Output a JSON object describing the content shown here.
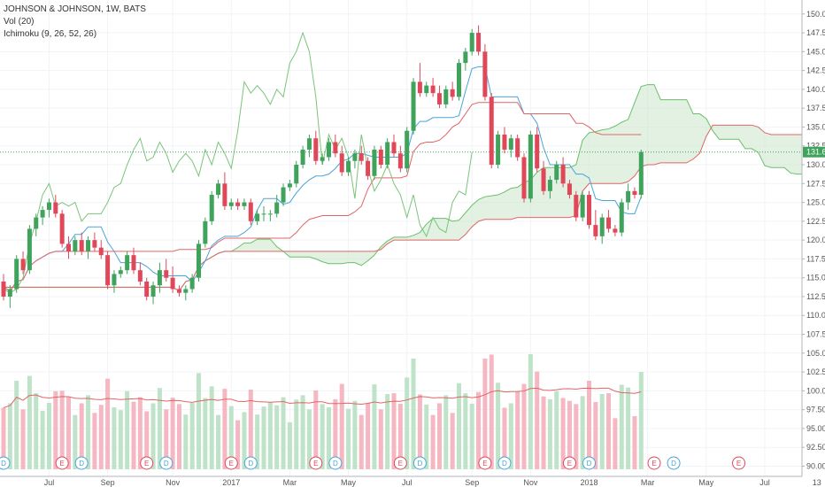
{
  "legend": {
    "title": "JOHNSON & JOHNSON, 1W, BATS",
    "volume": "Vol (20)",
    "ichimoku": "Ichimoku (9, 26, 52, 26)"
  },
  "colors": {
    "up": "#3fa35c",
    "down": "#e0485a",
    "up_fill": "#6cc48a",
    "cloud_fill": "#cfe8cf",
    "cloud_line": "#6bbf6b",
    "kijun": "#e06666",
    "tenkan": "#4aa3d9",
    "chikou": "#7bc47b",
    "vol_up": "#bfe3c8",
    "vol_down": "#f5b7c2",
    "vol_ma": "#e06666",
    "last_price": "#3fa35c"
  },
  "chart_data": {
    "type": "candlestick",
    "symbol": "JOHNSON & JOHNSON",
    "interval": "1W",
    "exchange": "BATS",
    "y_axis": {
      "range": [
        89,
        151.5
      ],
      "ticks": [
        "150.00",
        "147.50",
        "145.00",
        "142.50",
        "140.00",
        "137.50",
        "135.00",
        "132.50",
        "130.00",
        "127.50",
        "125.00",
        "122.50",
        "120.00",
        "117.50",
        "115.00",
        "112.50",
        "110.00",
        "107.50",
        "105.00",
        "102.50",
        "100.00",
        "97.50",
        "95.00",
        "92.50",
        "90.00"
      ]
    },
    "x_axis": {
      "ticks": [
        "Jul",
        "Sep",
        "Nov",
        "2017",
        "Mar",
        "May",
        "Jul",
        "Sep",
        "Nov",
        "2018",
        "Mar",
        "May",
        "Jul",
        "13"
      ],
      "tick_week_index": [
        7,
        16,
        26,
        35,
        44,
        53,
        62,
        72,
        81,
        90,
        99,
        108,
        117,
        125
      ]
    },
    "last_price": "131.68",
    "candles": [
      [
        114.5,
        115.5,
        112.0,
        112.5
      ],
      [
        112.5,
        114.0,
        111.0,
        113.5
      ],
      [
        113.5,
        118.0,
        113.0,
        117.5
      ],
      [
        117.5,
        118.5,
        115.5,
        116.0
      ],
      [
        116.0,
        122.0,
        115.5,
        121.5
      ],
      [
        121.5,
        123.5,
        120.5,
        123.0
      ],
      [
        123.0,
        124.5,
        122.0,
        124.0
      ],
      [
        124.0,
        125.5,
        123.0,
        125.0
      ],
      [
        125.0,
        126.0,
        123.0,
        123.5
      ],
      [
        123.5,
        124.0,
        119.0,
        119.5
      ],
      [
        119.5,
        120.5,
        117.5,
        118.5
      ],
      [
        118.5,
        120.5,
        118.0,
        120.0
      ],
      [
        120.0,
        121.0,
        118.0,
        118.5
      ],
      [
        118.5,
        120.5,
        117.5,
        120.0
      ],
      [
        120.0,
        121.0,
        118.5,
        119.0
      ],
      [
        119.0,
        120.0,
        117.5,
        118.0
      ],
      [
        118.0,
        118.5,
        113.5,
        114.0
      ],
      [
        114.0,
        116.0,
        113.0,
        115.5
      ],
      [
        115.5,
        116.5,
        115.0,
        116.0
      ],
      [
        116.0,
        118.5,
        115.5,
        118.0
      ],
      [
        118.0,
        119.0,
        115.5,
        116.0
      ],
      [
        116.0,
        117.0,
        114.0,
        114.5
      ],
      [
        114.5,
        115.0,
        112.0,
        112.5
      ],
      [
        112.5,
        114.5,
        111.5,
        114.0
      ],
      [
        114.0,
        117.0,
        113.0,
        116.0
      ],
      [
        116.0,
        117.5,
        114.5,
        115.0
      ],
      [
        115.0,
        116.5,
        113.0,
        113.5
      ],
      [
        113.5,
        114.0,
        112.5,
        113.0
      ],
      [
        113.0,
        114.0,
        112.0,
        113.5
      ],
      [
        113.5,
        115.5,
        113.0,
        115.0
      ],
      [
        115.0,
        120.0,
        114.5,
        119.5
      ],
      [
        119.5,
        123.0,
        119.0,
        122.5
      ],
      [
        122.5,
        126.5,
        122.0,
        126.0
      ],
      [
        126.0,
        128.0,
        125.5,
        127.5
      ],
      [
        127.5,
        129.0,
        124.0,
        124.5
      ],
      [
        124.5,
        125.5,
        124.0,
        125.0
      ],
      [
        125.0,
        125.5,
        124.0,
        124.5
      ],
      [
        124.5,
        125.5,
        124.0,
        125.0
      ],
      [
        125.0,
        125.5,
        122.0,
        122.5
      ],
      [
        122.5,
        124.0,
        122.0,
        123.5
      ],
      [
        123.5,
        124.5,
        122.5,
        123.5
      ],
      [
        123.5,
        124.0,
        122.5,
        123.5
      ],
      [
        123.5,
        126.0,
        123.0,
        125.0
      ],
      [
        125.0,
        127.5,
        124.5,
        127.0
      ],
      [
        127.0,
        128.0,
        126.5,
        127.5
      ],
      [
        127.5,
        130.5,
        127.0,
        130.0
      ],
      [
        130.0,
        132.5,
        129.5,
        132.0
      ],
      [
        132.0,
        134.0,
        131.0,
        133.5
      ],
      [
        133.5,
        134.5,
        130.0,
        130.5
      ],
      [
        130.5,
        131.5,
        130.0,
        131.0
      ],
      [
        131.0,
        133.5,
        130.5,
        133.0
      ],
      [
        133.0,
        134.0,
        131.0,
        131.5
      ],
      [
        131.5,
        132.5,
        128.5,
        129.0
      ],
      [
        129.0,
        131.0,
        128.5,
        130.5
      ],
      [
        130.5,
        132.0,
        129.5,
        131.5
      ],
      [
        131.5,
        132.5,
        130.0,
        130.5
      ],
      [
        130.5,
        131.0,
        128.0,
        128.5
      ],
      [
        128.5,
        132.5,
        128.0,
        132.0
      ],
      [
        132.0,
        132.5,
        129.5,
        130.0
      ],
      [
        130.0,
        133.5,
        129.5,
        133.0
      ],
      [
        133.0,
        134.0,
        131.0,
        131.5
      ],
      [
        131.5,
        132.5,
        129.0,
        129.5
      ],
      [
        129.5,
        135.0,
        129.0,
        134.5
      ],
      [
        134.5,
        141.5,
        134.0,
        141.0
      ],
      [
        141.0,
        143.5,
        139.0,
        139.5
      ],
      [
        139.5,
        141.0,
        139.0,
        140.5
      ],
      [
        140.5,
        141.5,
        139.0,
        139.5
      ],
      [
        139.5,
        140.5,
        137.5,
        138.0
      ],
      [
        138.0,
        140.5,
        137.5,
        140.0
      ],
      [
        140.0,
        141.0,
        138.5,
        139.0
      ],
      [
        139.0,
        144.0,
        138.5,
        143.5
      ],
      [
        143.5,
        145.5,
        142.5,
        145.0
      ],
      [
        145.0,
        148.0,
        144.5,
        147.5
      ],
      [
        147.5,
        148.5,
        144.5,
        145.0
      ],
      [
        145.0,
        146.0,
        138.5,
        139.0
      ],
      [
        139.0,
        139.5,
        129.5,
        130.0
      ],
      [
        130.0,
        134.5,
        129.5,
        134.0
      ],
      [
        134.0,
        135.0,
        131.5,
        132.0
      ],
      [
        132.0,
        134.0,
        131.0,
        133.5
      ],
      [
        133.5,
        134.0,
        130.5,
        131.0
      ],
      [
        131.0,
        131.5,
        125.0,
        125.5
      ],
      [
        125.5,
        134.5,
        125.0,
        134.0
      ],
      [
        134.0,
        135.0,
        129.0,
        129.5
      ],
      [
        129.5,
        130.5,
        126.0,
        126.5
      ],
      [
        126.5,
        128.5,
        125.5,
        128.0
      ],
      [
        128.0,
        130.5,
        127.5,
        130.0
      ],
      [
        130.0,
        131.0,
        127.0,
        127.5
      ],
      [
        127.5,
        128.0,
        125.5,
        126.0
      ],
      [
        126.0,
        126.5,
        122.5,
        123.0
      ],
      [
        123.0,
        126.5,
        122.5,
        126.0
      ],
      [
        126.0,
        126.5,
        121.5,
        122.0
      ],
      [
        122.0,
        124.0,
        120.0,
        120.5
      ],
      [
        120.5,
        123.5,
        119.5,
        123.0
      ],
      [
        123.0,
        124.0,
        121.0,
        121.5
      ],
      [
        121.5,
        122.0,
        120.5,
        121.0
      ],
      [
        121.0,
        125.5,
        120.5,
        125.0
      ],
      [
        125.0,
        127.5,
        124.0,
        126.5
      ],
      [
        126.5,
        127.0,
        125.5,
        126.0
      ],
      [
        126.0,
        132.0,
        125.5,
        131.68
      ]
    ],
    "events": [
      {
        "week": 0,
        "type": "D"
      },
      {
        "week": 9,
        "type": "E"
      },
      {
        "week": 12,
        "type": "D"
      },
      {
        "week": 22,
        "type": "E"
      },
      {
        "week": 25,
        "type": "D"
      },
      {
        "week": 35,
        "type": "E"
      },
      {
        "week": 38,
        "type": "D"
      },
      {
        "week": 48,
        "type": "E"
      },
      {
        "week": 51,
        "type": "D"
      },
      {
        "week": 61,
        "type": "E"
      },
      {
        "week": 64,
        "type": "D"
      },
      {
        "week": 74,
        "type": "E"
      },
      {
        "week": 77,
        "type": "D"
      },
      {
        "week": 87,
        "type": "E"
      },
      {
        "week": 90,
        "type": "D"
      },
      {
        "week": 100,
        "type": "E"
      },
      {
        "week": 103,
        "type": "D"
      },
      {
        "week": 113,
        "type": "E"
      }
    ]
  }
}
